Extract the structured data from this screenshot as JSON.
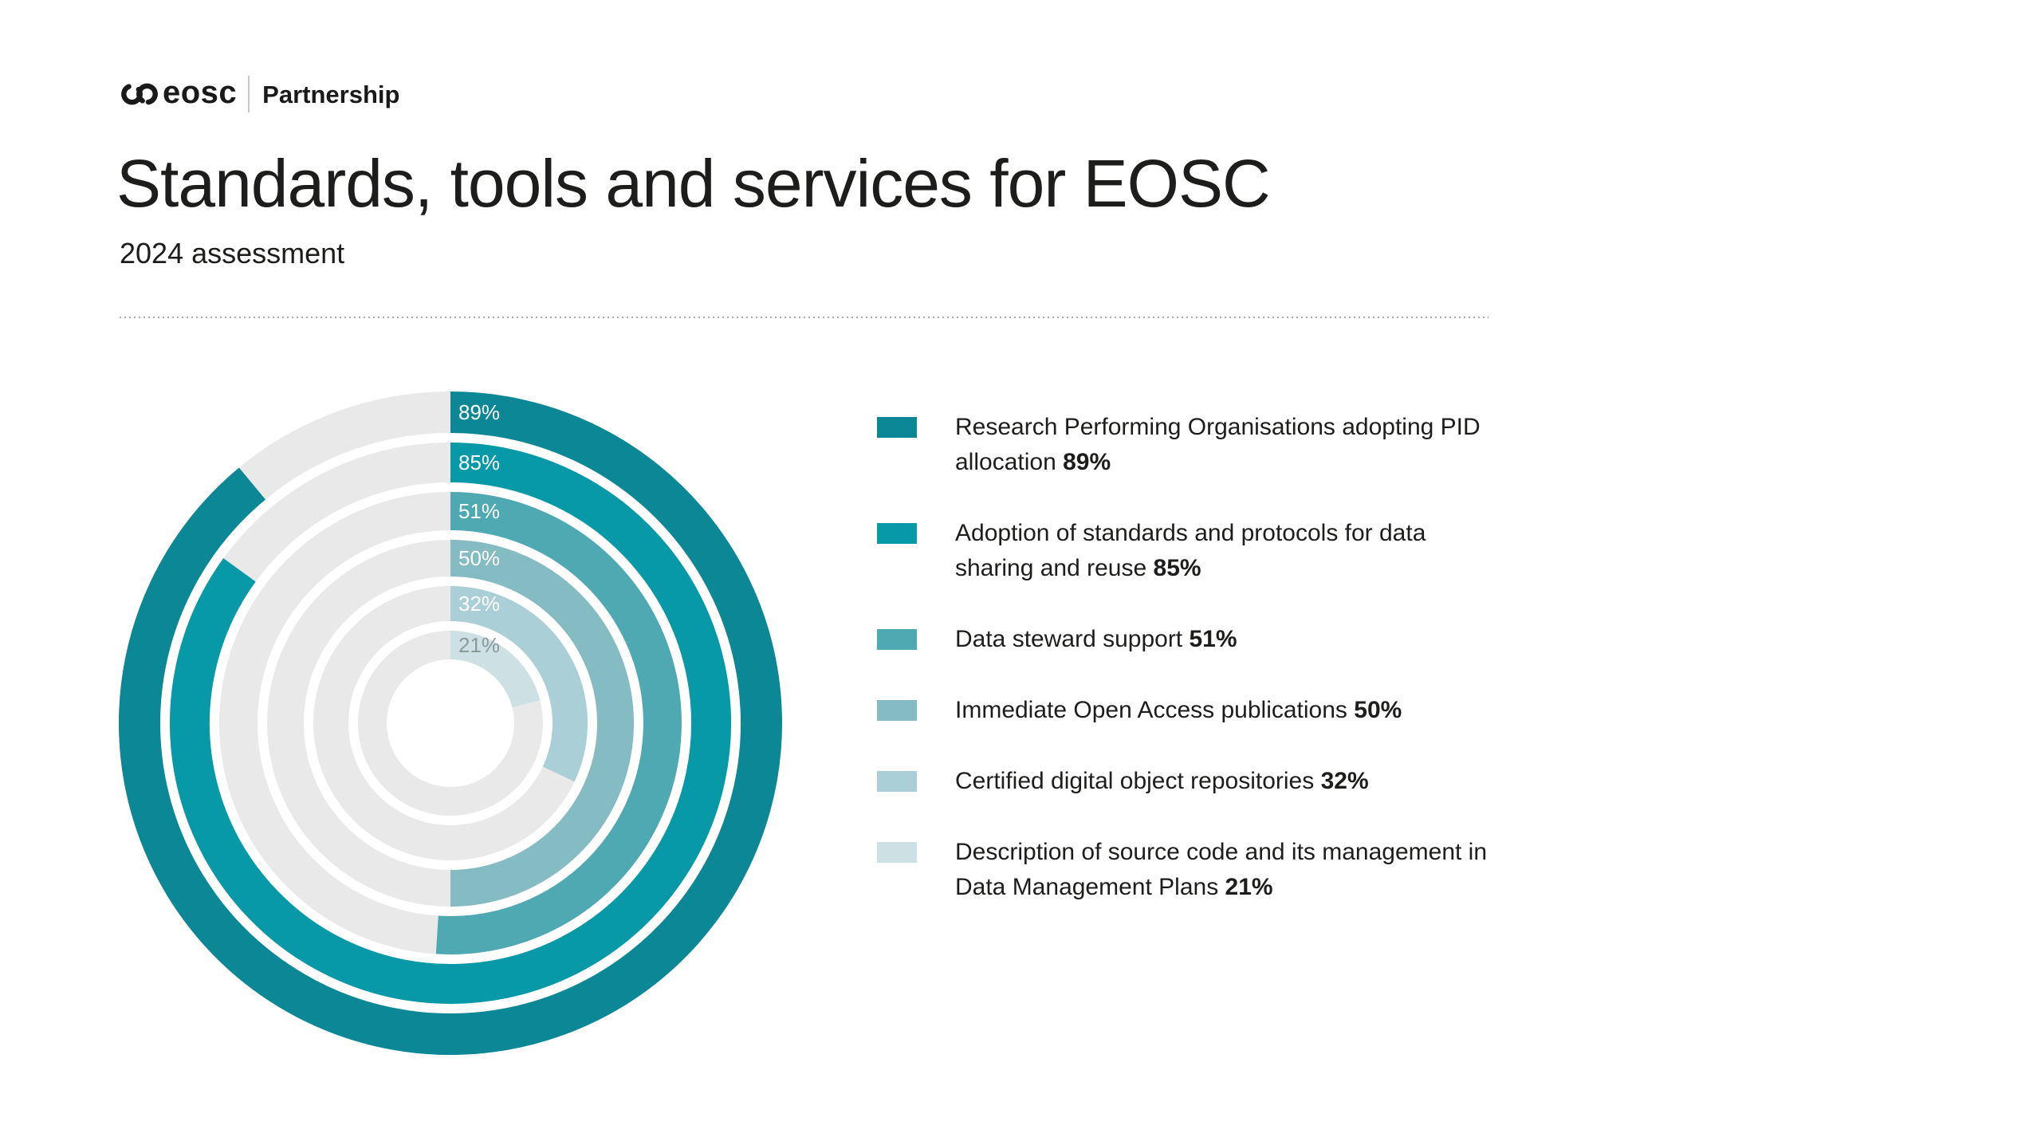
{
  "header": {
    "logo": {
      "brand": "eosc",
      "label": "Partnership"
    },
    "title": "Standards, tools and services for EOSC",
    "subtitle": "2024 assessment"
  },
  "chart_data": {
    "type": "radial-bar",
    "title": "Standards, tools and services for EOSC - 2024 assessment",
    "unit": "%",
    "start_angle": "top",
    "direction": "clockwise",
    "value_range": [
      0,
      100
    ],
    "track_color": "#e9e9e9",
    "rings": [
      {
        "label": "Research Performing Organisations adopting PID allocation",
        "value": 89,
        "value_label": "89%",
        "color": "#0b8795",
        "value_label_color": "#ffffff"
      },
      {
        "label": "Adoption of standards and protocols for data sharing and reuse",
        "value": 85,
        "value_label": "85%",
        "color": "#0799a8",
        "value_label_color": "#ffffff"
      },
      {
        "label": "Data steward support",
        "value": 51,
        "value_label": "51%",
        "color": "#4ea9b3",
        "value_label_color": "#ffffff"
      },
      {
        "label": "Immediate Open Access publications",
        "value": 50,
        "value_label": "50%",
        "color": "#85bbc3",
        "value_label_color": "#ffffff"
      },
      {
        "label": "Certified digital object repositories",
        "value": 32,
        "value_label": "32%",
        "color": "#abcfd6",
        "value_label_color": "#ffffff"
      },
      {
        "label": "Description of source code and its management in Data Management Plans",
        "value": 21,
        "value_label": "21%",
        "color": "#cde0e4",
        "value_label_color": "#8d9899"
      }
    ]
  },
  "legend": {
    "items": [
      {
        "lines": [
          "Research Performing Organisations adopting PID",
          "allocation"
        ],
        "value": "89%",
        "color": "#0b8795"
      },
      {
        "lines": [
          "Adoption of standards and protocols for data",
          "sharing and reuse"
        ],
        "value": "85%",
        "color": "#0799a8"
      },
      {
        "lines": [
          "Data steward support"
        ],
        "value": "51%",
        "color": "#4ea9b3"
      },
      {
        "lines": [
          "Immediate Open Access publications"
        ],
        "value": "50%",
        "color": "#85bbc3"
      },
      {
        "lines": [
          "Certified digital object repositories"
        ],
        "value": "32%",
        "color": "#abcfd6"
      },
      {
        "lines": [
          "Description of source code and its management in",
          "Data Management Plans"
        ],
        "value": "21%",
        "color": "#cde0e4"
      }
    ]
  }
}
